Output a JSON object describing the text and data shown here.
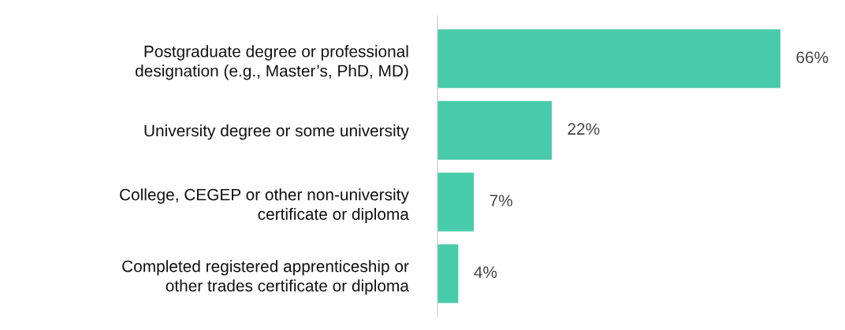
{
  "chart_data": {
    "type": "bar",
    "orientation": "horizontal",
    "categories": [
      "Postgraduate degree or professional\ndesignation (e.g., Master’s, PhD, MD)",
      "University degree or some university",
      "College, CEGEP or other non-university\ncertificate or diploma",
      "Completed registered apprenticeship or\nother trades certificate or diploma"
    ],
    "values": [
      66,
      22,
      7,
      4
    ],
    "value_labels": [
      "66%",
      "22%",
      "7%",
      "4%"
    ],
    "color": "#48cbaa"
  }
}
